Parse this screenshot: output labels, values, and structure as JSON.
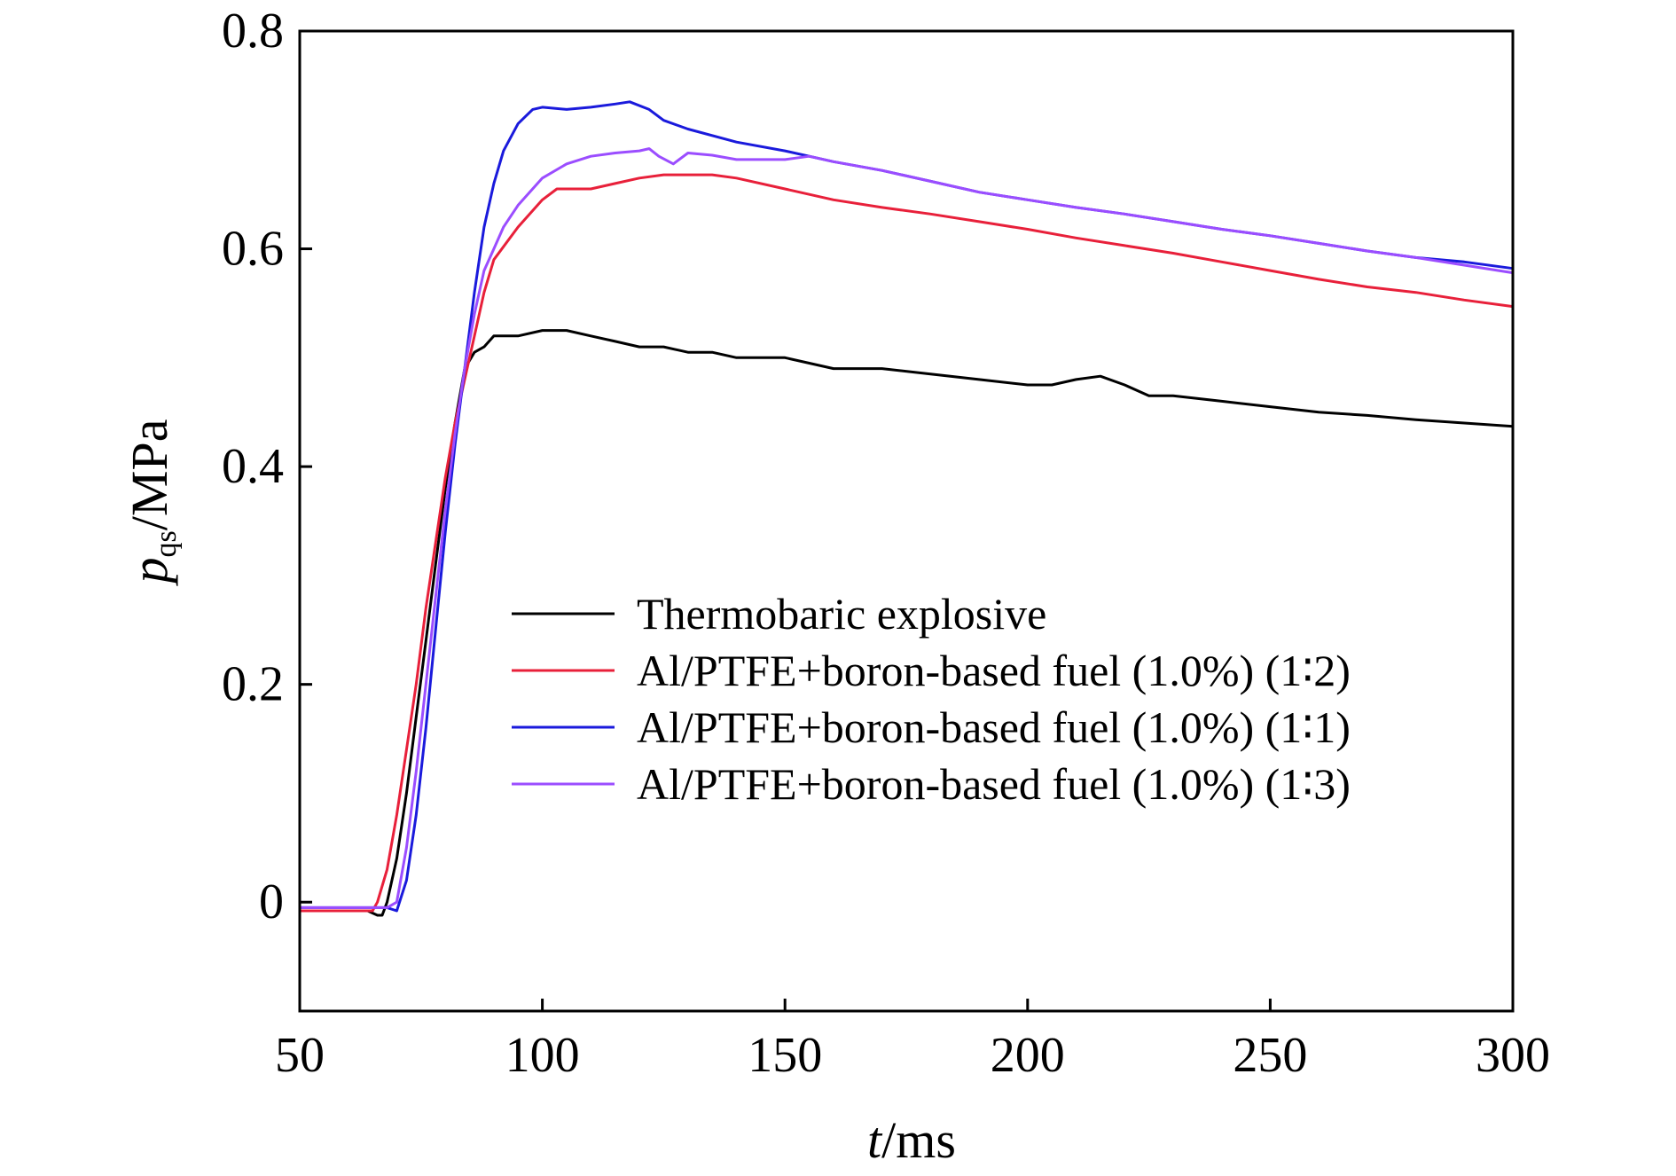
{
  "chart_data": {
    "type": "line",
    "xlabel": {
      "italic": "t",
      "rest": "/ms"
    },
    "ylabel": {
      "italic": "p",
      "sub": "qs",
      "rest": "/MPa"
    },
    "xlim": [
      50,
      300
    ],
    "ylim": [
      -0.1,
      0.8
    ],
    "xticks": [
      50,
      100,
      150,
      200,
      250,
      300
    ],
    "yticks": [
      0,
      0.2,
      0.4,
      0.6,
      0.8
    ],
    "xtick_labels": [
      "50",
      "100",
      "150",
      "200",
      "250",
      "300"
    ],
    "ytick_labels": [
      "0",
      "0.2",
      "0.4",
      "0.6",
      "0.8"
    ],
    "grid": false,
    "legend_position": "center-right",
    "series": [
      {
        "name": "Thermobaric explosive",
        "color": "#000000",
        "x": [
          50,
          64,
          66,
          67,
          68,
          70,
          72,
          74,
          76,
          78,
          80,
          82,
          84,
          86,
          88,
          90,
          95,
          100,
          105,
          110,
          115,
          120,
          125,
          130,
          135,
          140,
          145,
          150,
          160,
          170,
          180,
          190,
          200,
          205,
          210,
          215,
          220,
          225,
          230,
          240,
          250,
          260,
          270,
          280,
          290,
          300
        ],
        "y": [
          -0.008,
          -0.008,
          -0.012,
          -0.012,
          0.0,
          0.04,
          0.1,
          0.17,
          0.24,
          0.31,
          0.38,
          0.44,
          0.49,
          0.505,
          0.51,
          0.52,
          0.52,
          0.525,
          0.525,
          0.52,
          0.515,
          0.51,
          0.51,
          0.505,
          0.505,
          0.5,
          0.5,
          0.5,
          0.49,
          0.49,
          0.485,
          0.48,
          0.475,
          0.475,
          0.48,
          0.483,
          0.475,
          0.465,
          0.465,
          0.46,
          0.455,
          0.45,
          0.447,
          0.443,
          0.44,
          0.437
        ]
      },
      {
        "name": "Al/PTFE+boron-based fuel (1.0%) (1∶2)",
        "color": "#e8203a",
        "x": [
          50,
          65,
          66,
          68,
          70,
          72,
          74,
          76,
          78,
          80,
          82,
          84,
          86,
          88,
          90,
          95,
          100,
          103,
          106,
          110,
          115,
          120,
          125,
          130,
          135,
          140,
          150,
          160,
          170,
          180,
          190,
          200,
          210,
          220,
          230,
          240,
          250,
          260,
          270,
          280,
          290,
          300
        ],
        "y": [
          -0.008,
          -0.008,
          0.0,
          0.03,
          0.08,
          0.14,
          0.2,
          0.27,
          0.33,
          0.39,
          0.44,
          0.48,
          0.52,
          0.56,
          0.59,
          0.62,
          0.645,
          0.655,
          0.655,
          0.655,
          0.66,
          0.665,
          0.668,
          0.668,
          0.668,
          0.665,
          0.655,
          0.645,
          0.638,
          0.632,
          0.625,
          0.618,
          0.61,
          0.603,
          0.596,
          0.588,
          0.58,
          0.572,
          0.565,
          0.56,
          0.553,
          0.547
        ]
      },
      {
        "name": "Al/PTFE+boron-based fuel (1.0%) (1∶1)",
        "color": "#1a1adc",
        "x": [
          50,
          68,
          70,
          72,
          74,
          76,
          78,
          80,
          82,
          84,
          86,
          88,
          90,
          92,
          95,
          98,
          100,
          105,
          110,
          115,
          118,
          122,
          125,
          130,
          140,
          150,
          160,
          170,
          180,
          190,
          200,
          210,
          220,
          230,
          240,
          250,
          260,
          270,
          280,
          290,
          300
        ],
        "y": [
          -0.005,
          -0.005,
          -0.008,
          0.02,
          0.08,
          0.16,
          0.25,
          0.34,
          0.42,
          0.49,
          0.56,
          0.62,
          0.66,
          0.69,
          0.715,
          0.728,
          0.73,
          0.728,
          0.73,
          0.733,
          0.735,
          0.728,
          0.718,
          0.71,
          0.698,
          0.69,
          0.68,
          0.672,
          0.662,
          0.652,
          0.645,
          0.638,
          0.632,
          0.625,
          0.618,
          0.612,
          0.605,
          0.598,
          0.592,
          0.588,
          0.582
        ]
      },
      {
        "name": "Al/PTFE+boron-based fuel (1.0%) (1∶3)",
        "color": "#9b4dff",
        "x": [
          50,
          67,
          68,
          70,
          72,
          74,
          76,
          78,
          80,
          82,
          84,
          86,
          88,
          90,
          92,
          95,
          100,
          105,
          110,
          115,
          120,
          122,
          124,
          127,
          130,
          135,
          140,
          150,
          155,
          160,
          170,
          180,
          190,
          200,
          210,
          220,
          230,
          240,
          250,
          260,
          270,
          280,
          290,
          300
        ],
        "y": [
          -0.005,
          -0.005,
          -0.005,
          0.0,
          0.05,
          0.12,
          0.2,
          0.28,
          0.36,
          0.43,
          0.49,
          0.54,
          0.58,
          0.6,
          0.62,
          0.64,
          0.665,
          0.678,
          0.685,
          0.688,
          0.69,
          0.692,
          0.685,
          0.678,
          0.688,
          0.686,
          0.682,
          0.682,
          0.685,
          0.68,
          0.672,
          0.662,
          0.652,
          0.645,
          0.638,
          0.632,
          0.625,
          0.618,
          0.612,
          0.605,
          0.598,
          0.592,
          0.585,
          0.578
        ]
      }
    ]
  }
}
